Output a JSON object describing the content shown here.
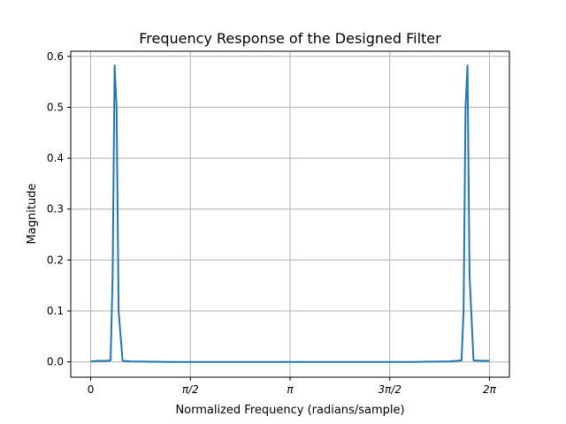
{
  "chart_data": {
    "type": "line",
    "title": "Frequency Response of the Designed Filter",
    "xlabel": "Normalized Frequency (radians/sample)",
    "ylabel": "Magnitude",
    "xlim": [
      -0.314,
      6.597
    ],
    "ylim": [
      -0.03,
      0.61
    ],
    "grid": true,
    "x_ticks": [
      {
        "value": 0,
        "label": "0"
      },
      {
        "value": 1.5708,
        "label": "π/2"
      },
      {
        "value": 3.1416,
        "label": "π"
      },
      {
        "value": 4.7124,
        "label": "3π/2"
      },
      {
        "value": 6.2832,
        "label": "2π"
      }
    ],
    "y_ticks": [
      0.0,
      0.1,
      0.2,
      0.3,
      0.4,
      0.5,
      0.6
    ],
    "y_tick_labels": [
      "0.0",
      "0.1",
      "0.2",
      "0.3",
      "0.4",
      "0.5",
      "0.6"
    ],
    "series": [
      {
        "color": "#1f77b4",
        "x": [
          0,
          0.126,
          0.251,
          0.314,
          0.346,
          0.377,
          0.408,
          0.44,
          0.503,
          0.628,
          1.257,
          2.513,
          3.142,
          3.77,
          5.027,
          5.655,
          5.781,
          5.843,
          5.875,
          5.906,
          5.937,
          5.969,
          6.032,
          6.157,
          6.283
        ],
        "values": [
          0.001,
          0.002,
          0.002,
          0.003,
          0.17,
          0.582,
          0.5,
          0.1,
          0.002,
          0.001,
          0.0,
          0.0,
          0.0,
          0.0,
          0.0,
          0.001,
          0.002,
          0.003,
          0.1,
          0.5,
          0.582,
          0.17,
          0.003,
          0.002,
          0.002
        ]
      }
    ]
  }
}
